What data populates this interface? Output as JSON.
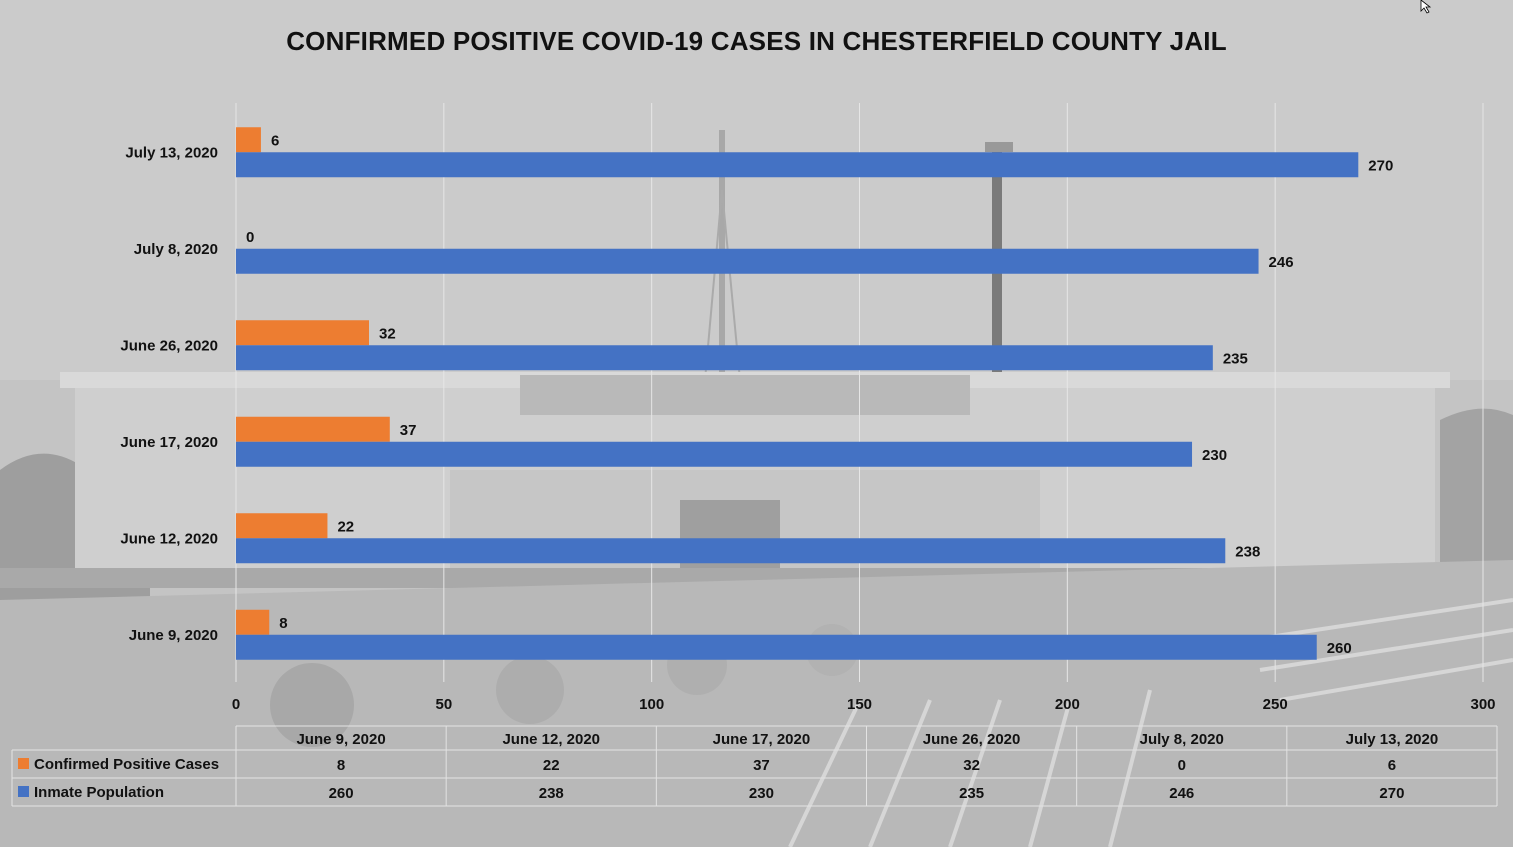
{
  "chart_data": {
    "type": "bar",
    "orientation": "horizontal",
    "title": "CONFIRMED POSITIVE COVID-19 CASES IN CHESTERFIELD COUNTY JAIL",
    "categories": [
      "June 9, 2020",
      "June 12, 2020",
      "June 17, 2020",
      "June 26, 2020",
      "July 8, 2020",
      "July 13, 2020"
    ],
    "series": [
      {
        "name": "Confirmed Positive Cases",
        "color": "#ed7d31",
        "values": [
          8,
          22,
          37,
          32,
          0,
          6
        ]
      },
      {
        "name": "Inmate Population",
        "color": "#4472c4",
        "values": [
          260,
          238,
          230,
          235,
          246,
          270
        ]
      }
    ],
    "xlim": [
      0,
      300
    ],
    "xticks": [
      0,
      50,
      100,
      150,
      200,
      250,
      300
    ],
    "grid": true,
    "data_table": true,
    "legend": "data table keys"
  }
}
